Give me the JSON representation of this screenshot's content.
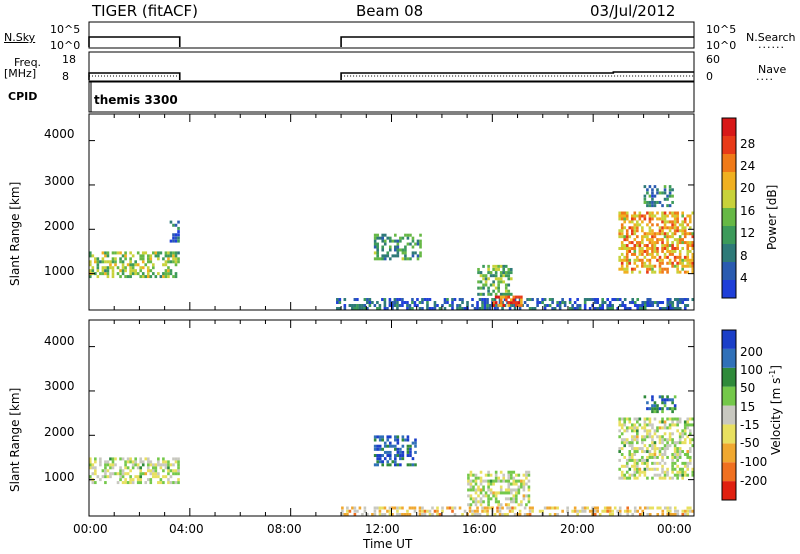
{
  "header": {
    "radar": "TIGER (fitACF)",
    "beam": "Beam 08",
    "date": "03/Jul/2012"
  },
  "aux": {
    "nsky_label": "N.Sky",
    "nsky_ticks": [
      "10^5",
      "10^0"
    ],
    "nsearch_label": "N.Search",
    "nsearch_ticks": [
      "10^5",
      "10^0"
    ],
    "freq_label": "Freq.",
    "freq_unit": "[MHz]",
    "freq_ticks": [
      "18",
      "8"
    ],
    "nave_label": "Nave",
    "nave_ticks": [
      "60",
      "0"
    ],
    "cpid_label": "CPID",
    "cpid_value": "themis 3300"
  },
  "colors": {
    "power_scale": [
      "#1f3fd8",
      "#2a5bb0",
      "#2e7a78",
      "#3c9a5a",
      "#66b845",
      "#c8d23a",
      "#f0b020",
      "#f07a18",
      "#e83a18",
      "#d81818"
    ],
    "velocity_scale": [
      "#1b3fc8",
      "#3070b8",
      "#2f8a3a",
      "#74c84a",
      "#c8c8c0",
      "#e8e060",
      "#f0a830",
      "#f07020",
      "#e02010"
    ]
  },
  "chart_data": [
    {
      "type": "heatmap",
      "title": "Power",
      "ylabel": "Slant Range [km]",
      "xlabel": "",
      "ylim": [
        180,
        4600
      ],
      "xlim_hours": [
        0,
        24
      ],
      "y_ticks": [
        "4000",
        "3000",
        "2000",
        "1000"
      ],
      "colorbar": {
        "label": "Power [dB]",
        "ticks": [
          "28",
          "24",
          "20",
          "16",
          "12",
          "8",
          "4"
        ],
        "range": [
          0,
          30
        ]
      },
      "regions": [
        {
          "t0": 0.0,
          "t1": 3.6,
          "r0": 900,
          "r1": 1500,
          "value": 14
        },
        {
          "t0": 3.2,
          "t1": 3.6,
          "r0": 1700,
          "r1": 2200,
          "value": 6
        },
        {
          "t0": 9.8,
          "t1": 24.0,
          "r0": 180,
          "r1": 450,
          "value": 5
        },
        {
          "t0": 11.3,
          "t1": 13.2,
          "r0": 1300,
          "r1": 1900,
          "value": 10
        },
        {
          "t0": 15.4,
          "t1": 16.8,
          "r0": 500,
          "r1": 1200,
          "value": 12
        },
        {
          "t0": 16.0,
          "t1": 17.2,
          "r0": 250,
          "r1": 500,
          "value": 24
        },
        {
          "t0": 21.0,
          "t1": 24.0,
          "r0": 1000,
          "r1": 2400,
          "value": 20
        },
        {
          "t0": 22.0,
          "t1": 23.2,
          "r0": 2500,
          "r1": 3000,
          "value": 8
        }
      ]
    },
    {
      "type": "heatmap",
      "title": "Velocity",
      "ylabel": "Slant Range [km]",
      "xlabel": "Time UT",
      "ylim": [
        180,
        4600
      ],
      "xlim_hours": [
        0,
        24
      ],
      "y_ticks": [
        "4000",
        "3000",
        "2000",
        "1000"
      ],
      "x_ticks": [
        "00:00",
        "04:00",
        "08:00",
        "12:00",
        "16:00",
        "20:00",
        "00:00"
      ],
      "colorbar": {
        "label": "Velocity [m s",
        "label_sup": "-1",
        "label_end": "]",
        "ticks": [
          "200",
          "100",
          "50",
          "15",
          "-15",
          "-50",
          "-100",
          "-200"
        ],
        "range": [
          -250,
          250
        ]
      },
      "regions": [
        {
          "t0": 0.0,
          "t1": 3.6,
          "r0": 900,
          "r1": 1500,
          "value": 0
        },
        {
          "t0": 11.3,
          "t1": 13.0,
          "r0": 1300,
          "r1": 2000,
          "value": 200
        },
        {
          "t0": 10.0,
          "t1": 24.0,
          "r0": 180,
          "r1": 400,
          "value": -60
        },
        {
          "t0": 15.0,
          "t1": 17.5,
          "r0": 400,
          "r1": 1200,
          "value": 0
        },
        {
          "t0": 21.0,
          "t1": 24.0,
          "r0": 1000,
          "r1": 2400,
          "value": 0
        },
        {
          "t0": 22.0,
          "t1": 23.3,
          "r0": 2500,
          "r1": 2900,
          "value": 150
        }
      ]
    }
  ]
}
